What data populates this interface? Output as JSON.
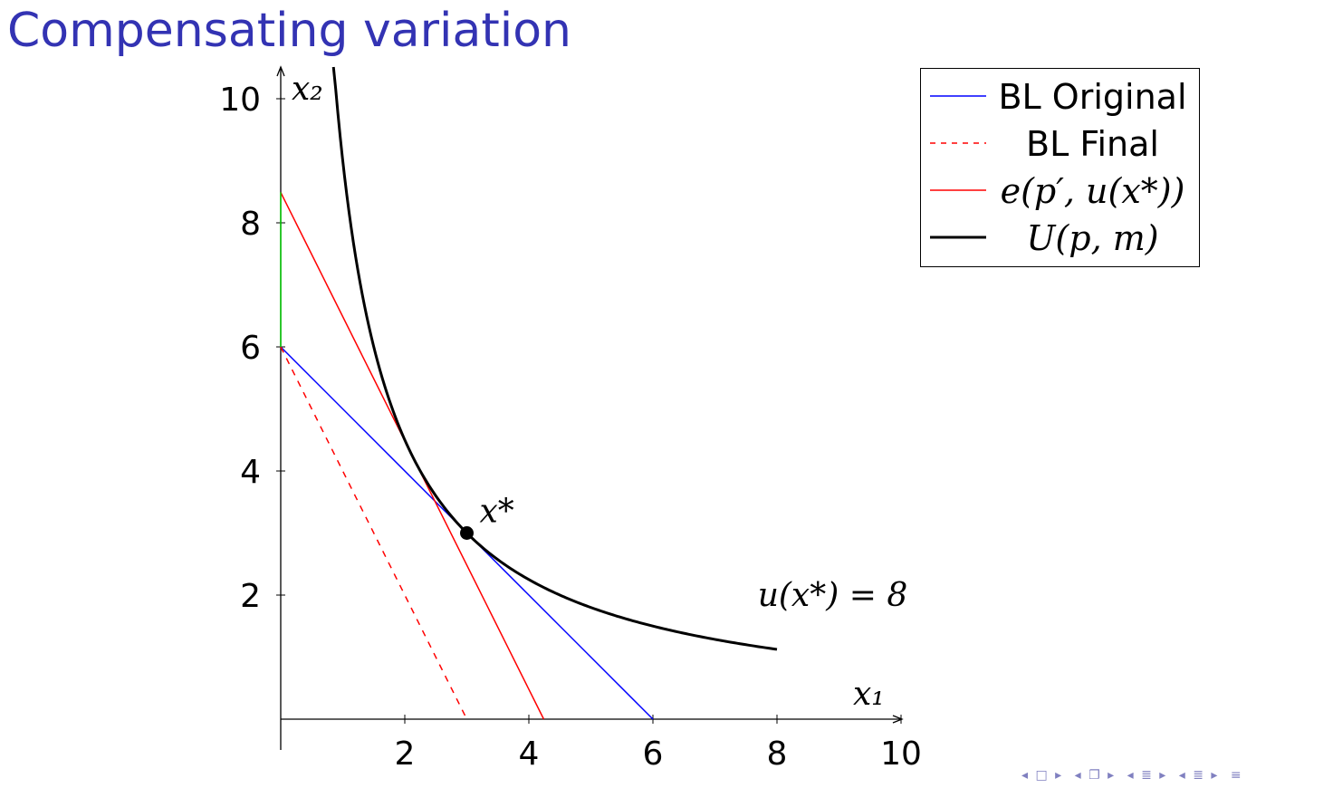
{
  "slide": {
    "title": "Compensating variation"
  },
  "chart_data": {
    "type": "line",
    "xlabel": "x₁",
    "ylabel": "x₂",
    "xlim": [
      0,
      10
    ],
    "ylim": [
      0,
      10
    ],
    "x_ticks": [
      "2",
      "4",
      "6",
      "8",
      "10"
    ],
    "y_ticks": [
      "2",
      "4",
      "6",
      "8",
      "10"
    ],
    "grid": false,
    "legend_position": "top-right",
    "series": [
      {
        "name": "BL Original",
        "style": "solid",
        "color": "#0000ff",
        "x": [
          0,
          6
        ],
        "y": [
          6,
          0
        ]
      },
      {
        "name": "BL Final",
        "style": "dashed",
        "color": "#ff0000",
        "x": [
          0,
          3
        ],
        "y": [
          6,
          0
        ]
      },
      {
        "name": "e(p′, u(x*))",
        "style": "solid",
        "color": "#ff0000",
        "x": [
          0,
          4.24
        ],
        "y": [
          8.49,
          0
        ]
      },
      {
        "name": "U(p, m)",
        "style": "solid-thick",
        "color": "#000000",
        "function": "x2 = 9 / x1",
        "x_range": [
          0.85,
          8
        ]
      }
    ],
    "extra_segments": [
      {
        "color": "#00cc00",
        "x": [
          0,
          0
        ],
        "y": [
          6,
          8.49
        ]
      }
    ],
    "points": [
      {
        "label": "x*",
        "x": 3,
        "y": 3
      }
    ],
    "annotations": [
      {
        "text": "u(x*) = 8",
        "x": 8.2,
        "y": 2
      }
    ]
  },
  "nav": {
    "icons": [
      "left-arrow-icon",
      "frame-icon",
      "right-arrow-icon",
      "subsection-icon",
      "section-icon",
      "align-icon"
    ],
    "glyphs": [
      "◂ □ ▸",
      "◂ ❐ ▸",
      "◂ ≣ ▸",
      "◂ ≣ ▸",
      "≡"
    ]
  }
}
